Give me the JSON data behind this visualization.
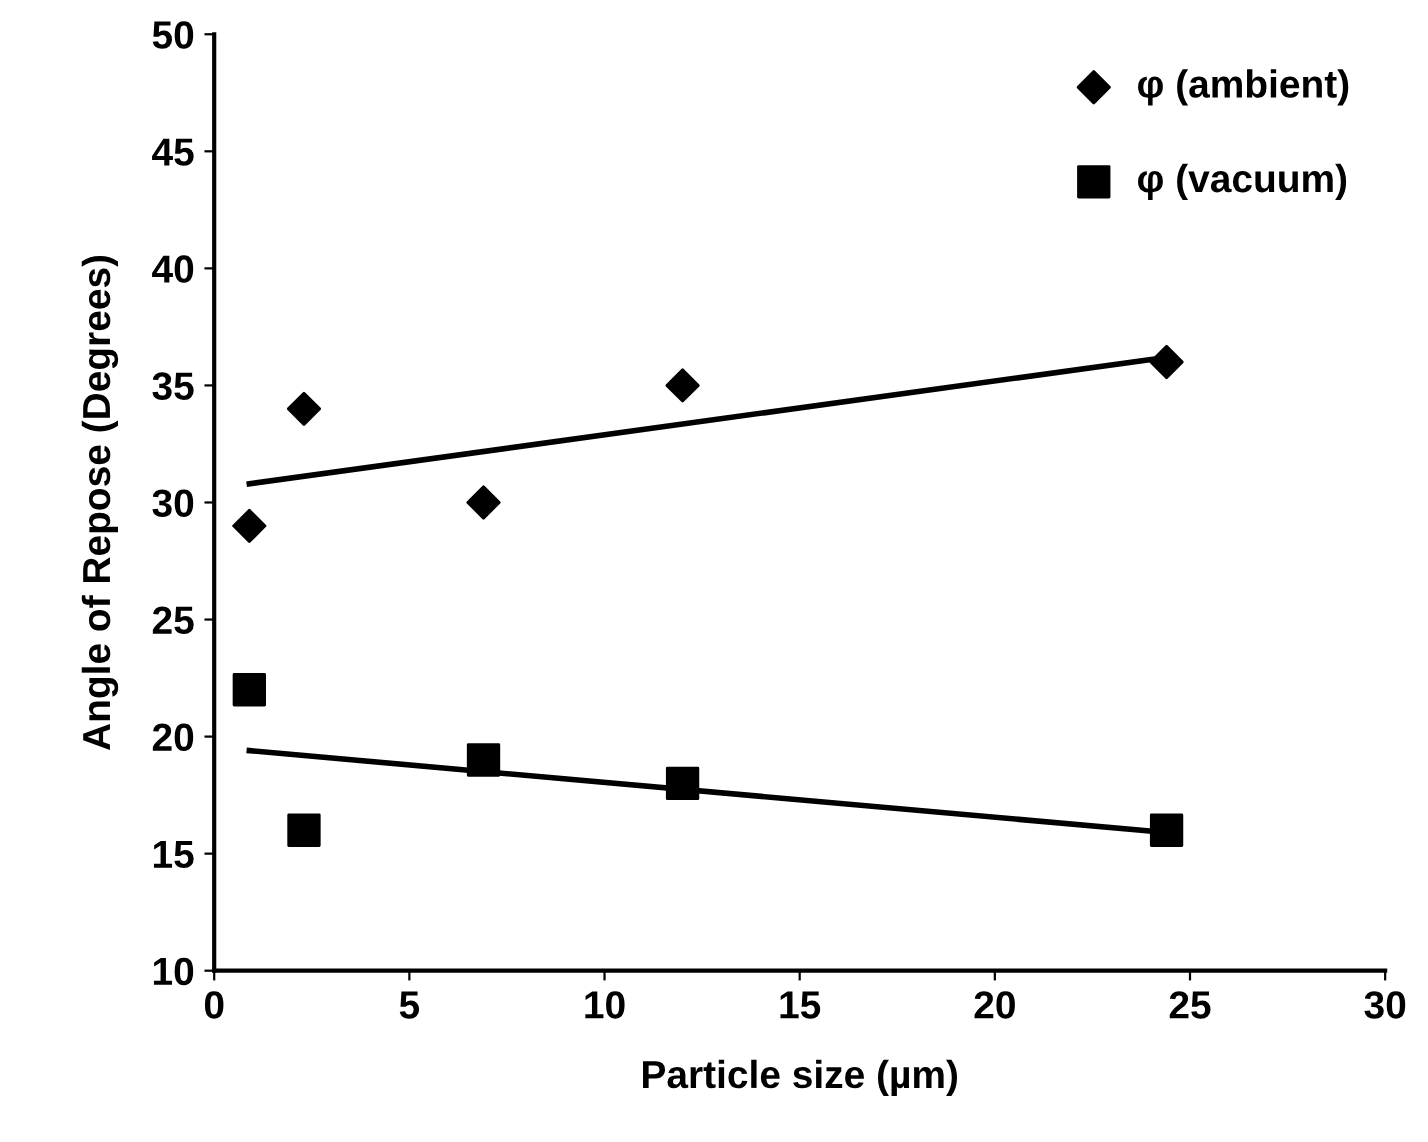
{
  "chart_data": {
    "type": "scatter",
    "xlabel": "Particle size (µm)",
    "ylabel": "Angle of Repose (Degrees)",
    "xlim": [
      0,
      30
    ],
    "xticks": [
      0,
      5,
      10,
      15,
      20,
      25,
      30
    ],
    "ylim": [
      10,
      50
    ],
    "yticks": [
      10,
      15,
      20,
      25,
      30,
      35,
      40,
      45,
      50
    ],
    "grid": false,
    "legend": "top right",
    "series": [
      {
        "name": "φ (ambient)",
        "color": "#000000",
        "marker": "diamond",
        "x": [
          0.9,
          2.3,
          6.9,
          12,
          24.4
        ],
        "values": [
          29,
          34,
          30,
          35,
          36
        ]
      },
      {
        "name": "φ (vacuum)",
        "color": "#000000",
        "marker": "square",
        "x": [
          0.9,
          2.3,
          6.9,
          12,
          24.4
        ],
        "values": [
          22,
          16,
          19,
          18,
          16
        ]
      },
      {
        "type": "line",
        "color": "#000000",
        "marker": "none",
        "line_style": "solid",
        "x": [
          0.9,
          24.4
        ],
        "values": [
          30.8,
          36.2
        ]
      },
      {
        "type": "line",
        "color": "#000000",
        "marker": "none",
        "line_style": "solid",
        "x": [
          0.9,
          24.4
        ],
        "values": [
          19.4,
          15.9
        ]
      }
    ]
  }
}
